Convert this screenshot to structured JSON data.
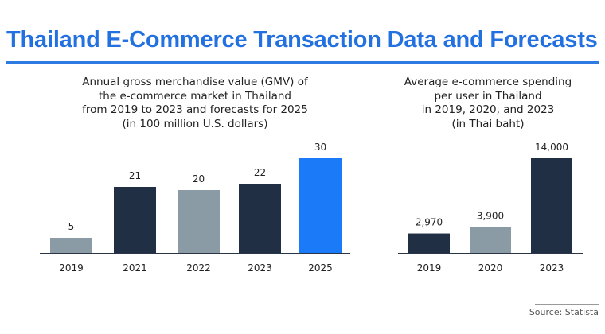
{
  "title": "Thailand E-Commerce Transaction Data and Forecasts",
  "source": "Source: Statista",
  "colors": {
    "dark": "#212f45",
    "gray": "#8a9ba6",
    "blue": "#1a7af8",
    "title": "#2371e0"
  },
  "chart_data": [
    {
      "type": "bar",
      "title": "Annual gross merchandise value (GMV) of the e-commerce market in Thailand from 2019 to 2023 and forecasts for 2025 (in 100 million U.S. dollars)",
      "title_lines": [
        "Annual gross merchandise value (GMV) of",
        "the e-commerce market in Thailand",
        "from 2019 to 2023 and forecasts for 2025",
        "(in 100 million U.S. dollars)"
      ],
      "categories": [
        "2019",
        "2021",
        "2022",
        "2023",
        "2025"
      ],
      "values": [
        5,
        21,
        20,
        22,
        30
      ],
      "labels": [
        "5",
        "21",
        "20",
        "22",
        "30"
      ],
      "bar_colors": [
        "gray",
        "dark",
        "gray",
        "dark",
        "blue"
      ],
      "ylim": [
        0,
        30
      ],
      "grid": false
    },
    {
      "type": "bar",
      "title": "Average e-commerce spending per user in Thailand in 2019, 2020, and 2023 (in Thai baht)",
      "title_lines": [
        "Average e-commerce spending",
        "per user in Thailand",
        "in 2019, 2020, and 2023",
        "(in Thai baht)"
      ],
      "categories": [
        "2019",
        "2020",
        "2023"
      ],
      "values": [
        2970,
        3900,
        14000
      ],
      "labels": [
        "2,970",
        "3,900",
        "14,000"
      ],
      "bar_colors": [
        "dark",
        "gray",
        "dark"
      ],
      "ylim": [
        0,
        14000
      ],
      "grid": false
    }
  ]
}
